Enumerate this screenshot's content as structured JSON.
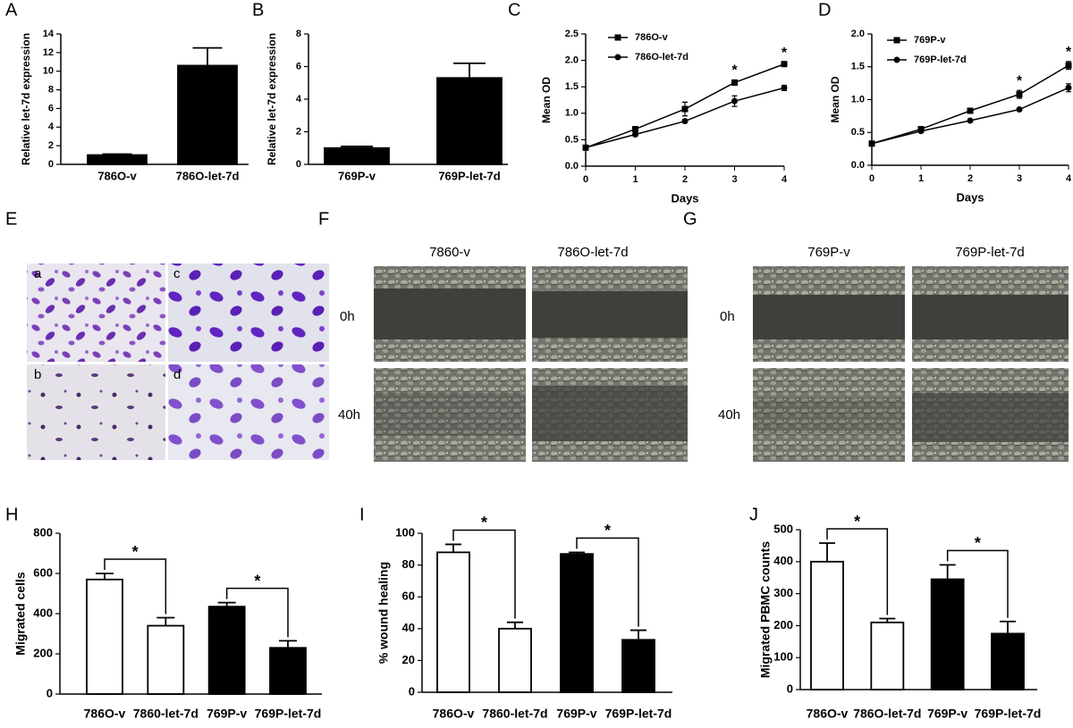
{
  "chart_data": [
    {
      "type": "bar",
      "panel": "A",
      "ylabel": "Relative let-7d expression",
      "categories": [
        "786O-v",
        "786O-let-7d"
      ],
      "values": [
        1,
        10.6
      ],
      "errors": [
        0.1,
        1.9
      ],
      "colors": [
        "#000000",
        "#000000"
      ],
      "ylim": [
        0,
        14
      ],
      "yticks": [
        0,
        2,
        4,
        6,
        8,
        10,
        12,
        14
      ],
      "annotations": []
    },
    {
      "type": "bar",
      "panel": "B",
      "ylabel": "Relative let-7d expression",
      "categories": [
        "769P-v",
        "769P-let-7d"
      ],
      "values": [
        1,
        5.3
      ],
      "errors": [
        0.1,
        0.9
      ],
      "colors": [
        "#000000",
        "#000000"
      ],
      "ylim": [
        0,
        8
      ],
      "yticks": [
        0,
        2,
        4,
        6,
        8
      ],
      "annotations": []
    },
    {
      "type": "line",
      "panel": "C",
      "xlabel": "Days",
      "ylabel": "Mean OD",
      "x": [
        0,
        1,
        2,
        3,
        4
      ],
      "xlim": [
        0,
        4
      ],
      "xticks": [
        0,
        1,
        2,
        3,
        4
      ],
      "ylim": [
        0,
        2.5
      ],
      "yticks": [
        {
          "value": 0,
          "label": "0.0"
        },
        0.5,
        {
          "value": 1,
          "label": "1.0"
        },
        1.5,
        {
          "value": 2,
          "label": "2.0"
        },
        2.5
      ],
      "series": [
        {
          "name": "786O-v",
          "color": "#000000",
          "marker": "square",
          "values": [
            0.35,
            0.7,
            1.08,
            1.58,
            1.93
          ],
          "errors": [
            0.02,
            0.05,
            0.13,
            0.05,
            0.03
          ]
        },
        {
          "name": "786O-let-7d",
          "color": "#000000",
          "marker": "circle",
          "values": [
            0.35,
            0.6,
            0.85,
            1.23,
            1.48
          ],
          "errors": [
            0.02,
            0.03,
            0.03,
            0.1,
            0.05
          ]
        }
      ],
      "annotations": [
        "*",
        "*"
      ]
    },
    {
      "type": "line",
      "panel": "D",
      "xlabel": "Days",
      "ylabel": "Mean OD",
      "x": [
        0,
        1,
        2,
        3,
        4
      ],
      "xlim": [
        0,
        4
      ],
      "xticks": [
        0,
        1,
        2,
        3,
        4
      ],
      "ylim": [
        0,
        2
      ],
      "yticks": [
        {
          "value": 0,
          "label": "0.0"
        },
        0.5,
        {
          "value": 1,
          "label": "1.0"
        },
        1.5,
        {
          "value": 2,
          "label": "2.0"
        }
      ],
      "series": [
        {
          "name": "769P-v",
          "color": "#000000",
          "marker": "square",
          "values": [
            0.33,
            0.55,
            0.83,
            1.08,
            1.52
          ],
          "errors": [
            0.02,
            0.03,
            0.02,
            0.06,
            0.06
          ]
        },
        {
          "name": "769P-let-7d",
          "color": "#000000",
          "marker": "circle",
          "values": [
            0.33,
            0.52,
            0.68,
            0.85,
            1.18
          ],
          "errors": [
            0.02,
            0.02,
            0.02,
            0.02,
            0.06
          ]
        }
      ],
      "annotations": [
        "*",
        "*"
      ]
    },
    {
      "type": "bar",
      "panel": "H",
      "ylabel": "Migrated cells",
      "categories": [
        "786O-v",
        "7860-let-7d",
        "769P-v",
        "769P-let-7d"
      ],
      "values": [
        570,
        340,
        435,
        230
      ],
      "errors": [
        30,
        40,
        20,
        35
      ],
      "colors": [
        "#ffffff",
        "#ffffff",
        "#000000",
        "#000000"
      ],
      "ylim": [
        0,
        800
      ],
      "yticks": [
        0,
        200,
        400,
        600,
        800
      ],
      "annotations": [
        "*",
        "*"
      ]
    },
    {
      "type": "bar",
      "panel": "I",
      "ylabel": "% wound healing",
      "categories": [
        "786O-v",
        "7860-let-7d",
        "769P-v",
        "769P-let-7d"
      ],
      "values": [
        88,
        40,
        87,
        33
      ],
      "errors": [
        5,
        4,
        1,
        6
      ],
      "colors": [
        "#ffffff",
        "#ffffff",
        "#000000",
        "#000000"
      ],
      "ylim": [
        0,
        100
      ],
      "yticks": [
        0,
        20,
        40,
        60,
        80,
        100
      ],
      "annotations": [
        "*",
        "*"
      ]
    },
    {
      "type": "bar",
      "panel": "J",
      "ylabel": "Migrated PBMC counts",
      "categories": [
        "786O-v",
        "786O-let-7d",
        "769P-v",
        "769P-let-7d"
      ],
      "values": [
        400,
        210,
        345,
        175
      ],
      "errors": [
        58,
        12,
        45,
        38
      ],
      "colors": [
        "#ffffff",
        "#ffffff",
        "#000000",
        "#000000"
      ],
      "ylim": [
        0,
        500
      ],
      "yticks": [
        0,
        100,
        200,
        300,
        400,
        500
      ],
      "annotations": [
        "*",
        "*"
      ]
    }
  ],
  "image_panels": [
    {
      "label": "E",
      "tiles": [
        "a",
        "c",
        "b",
        "d"
      ]
    },
    {
      "label": "F",
      "columns": [
        "7860-v",
        "786O-let-7d"
      ],
      "rows": [
        "0h",
        "40h"
      ]
    },
    {
      "label": "G",
      "columns": [
        "769P-v",
        "769P-let-7d"
      ],
      "rows": [
        "0h",
        "40h"
      ]
    }
  ]
}
